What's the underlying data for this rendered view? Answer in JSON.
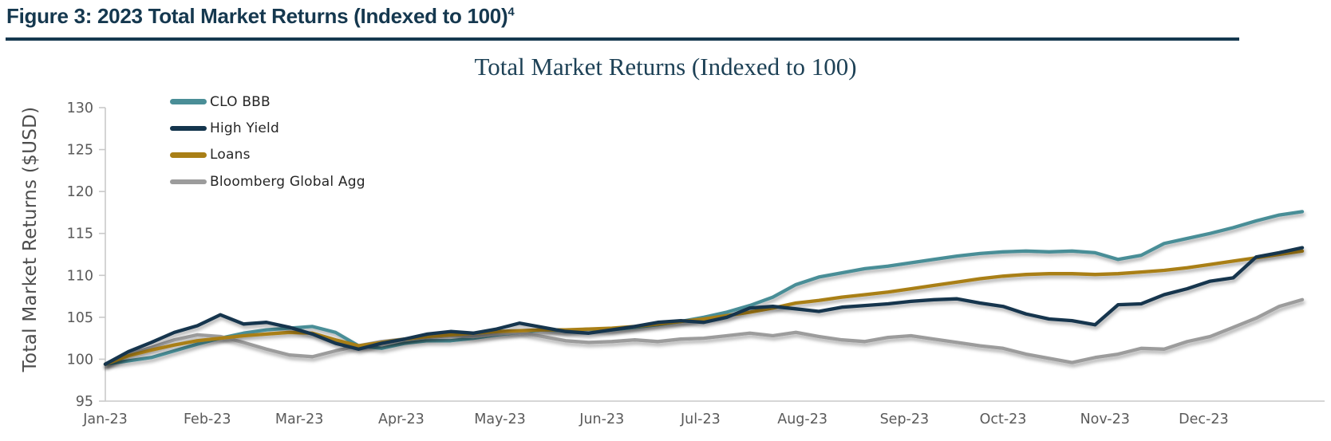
{
  "header": {
    "figure_label": "Figure 3: 2023 Total Market Returns (Indexed to 100)",
    "footnote_marker": "4",
    "heading_color": "#15384F"
  },
  "chart": {
    "title": "Total Market Returns (Indexed to 100)",
    "y_axis_label": "Total Market Returns ($USD)"
  },
  "colors": {
    "heading_navy": "#15384F",
    "title_navy": "#1D4156",
    "axis_line": "#C9C9C9",
    "axis_text": "#5A5A5A",
    "legend_text": "#262626",
    "clo_bbb": "#4A8E97",
    "high_yield": "#14354D",
    "loans": "#A97F16",
    "bloomberg_global_agg": "#9C9C9C"
  },
  "chart_data": {
    "type": "line",
    "title": "Total Market Returns (Indexed to 100)",
    "xlabel": "",
    "ylabel": "Total Market Returns ($USD)",
    "ylim": [
      95,
      130
    ],
    "y_ticks": [
      95,
      100,
      105,
      110,
      115,
      120,
      125,
      130
    ],
    "x_unit": "day of year 2023",
    "x_tick_days": [
      0,
      31,
      59,
      90,
      120,
      151,
      181,
      212,
      243,
      273,
      304,
      334
    ],
    "x_tick_labels": [
      "Jan-23",
      "Feb-23",
      "Mar-23",
      "Apr-23",
      "May-23",
      "Jun-23",
      "Jul-23",
      "Aug-23",
      "Sep-23",
      "Oct-23",
      "Nov-23",
      "Dec-23"
    ],
    "grid": false,
    "legend_position": "inside top-left",
    "series": [
      {
        "name": "CLO BBB",
        "color": "#4A8E97",
        "points": [
          [
            0,
            99.4
          ],
          [
            7,
            99.8
          ],
          [
            14,
            100.2
          ],
          [
            21,
            101.0
          ],
          [
            28,
            101.8
          ],
          [
            35,
            102.5
          ],
          [
            42,
            103.1
          ],
          [
            49,
            103.5
          ],
          [
            56,
            103.7
          ],
          [
            63,
            103.9
          ],
          [
            70,
            103.2
          ],
          [
            77,
            101.6
          ],
          [
            84,
            101.3
          ],
          [
            91,
            101.9
          ],
          [
            98,
            102.2
          ],
          [
            105,
            102.2
          ],
          [
            112,
            102.5
          ],
          [
            119,
            102.9
          ],
          [
            126,
            103.2
          ],
          [
            133,
            103.5
          ],
          [
            140,
            103.4
          ],
          [
            147,
            103.6
          ],
          [
            154,
            103.5
          ],
          [
            161,
            103.8
          ],
          [
            168,
            104.1
          ],
          [
            175,
            104.5
          ],
          [
            182,
            105.0
          ],
          [
            189,
            105.6
          ],
          [
            196,
            106.4
          ],
          [
            203,
            107.4
          ],
          [
            210,
            108.9
          ],
          [
            217,
            109.8
          ],
          [
            224,
            110.3
          ],
          [
            231,
            110.8
          ],
          [
            238,
            111.1
          ],
          [
            245,
            111.5
          ],
          [
            252,
            111.9
          ],
          [
            259,
            112.3
          ],
          [
            266,
            112.6
          ],
          [
            273,
            112.8
          ],
          [
            280,
            112.9
          ],
          [
            287,
            112.8
          ],
          [
            294,
            112.9
          ],
          [
            301,
            112.7
          ],
          [
            308,
            111.9
          ],
          [
            315,
            112.4
          ],
          [
            322,
            113.8
          ],
          [
            329,
            114.4
          ],
          [
            336,
            115.0
          ],
          [
            343,
            115.7
          ],
          [
            350,
            116.5
          ],
          [
            357,
            117.2
          ],
          [
            364,
            117.6
          ]
        ]
      },
      {
        "name": "High Yield",
        "color": "#14354D",
        "points": [
          [
            0,
            99.4
          ],
          [
            7,
            100.9
          ],
          [
            14,
            102.0
          ],
          [
            21,
            103.2
          ],
          [
            28,
            104.0
          ],
          [
            35,
            105.3
          ],
          [
            42,
            104.2
          ],
          [
            49,
            104.4
          ],
          [
            56,
            103.8
          ],
          [
            63,
            103.0
          ],
          [
            70,
            101.9
          ],
          [
            77,
            101.2
          ],
          [
            84,
            101.9
          ],
          [
            91,
            102.4
          ],
          [
            98,
            103.0
          ],
          [
            105,
            103.3
          ],
          [
            112,
            103.1
          ],
          [
            119,
            103.6
          ],
          [
            126,
            104.3
          ],
          [
            133,
            103.8
          ],
          [
            140,
            103.3
          ],
          [
            147,
            103.1
          ],
          [
            154,
            103.5
          ],
          [
            161,
            103.9
          ],
          [
            168,
            104.4
          ],
          [
            175,
            104.6
          ],
          [
            182,
            104.4
          ],
          [
            189,
            105.0
          ],
          [
            196,
            106.1
          ],
          [
            203,
            106.3
          ],
          [
            210,
            106.0
          ],
          [
            217,
            105.7
          ],
          [
            224,
            106.2
          ],
          [
            231,
            106.4
          ],
          [
            238,
            106.6
          ],
          [
            245,
            106.9
          ],
          [
            252,
            107.1
          ],
          [
            259,
            107.2
          ],
          [
            266,
            106.7
          ],
          [
            273,
            106.3
          ],
          [
            280,
            105.4
          ],
          [
            287,
            104.8
          ],
          [
            294,
            104.6
          ],
          [
            301,
            104.1
          ],
          [
            308,
            106.5
          ],
          [
            315,
            106.6
          ],
          [
            322,
            107.7
          ],
          [
            329,
            108.4
          ],
          [
            336,
            109.3
          ],
          [
            343,
            109.7
          ],
          [
            350,
            112.2
          ],
          [
            357,
            112.7
          ],
          [
            364,
            113.3
          ]
        ]
      },
      {
        "name": "Loans",
        "color": "#A97F16",
        "points": [
          [
            0,
            99.4
          ],
          [
            7,
            100.4
          ],
          [
            14,
            101.1
          ],
          [
            21,
            101.7
          ],
          [
            28,
            102.2
          ],
          [
            35,
            102.5
          ],
          [
            42,
            102.8
          ],
          [
            49,
            103.0
          ],
          [
            56,
            103.2
          ],
          [
            63,
            103.1
          ],
          [
            70,
            102.3
          ],
          [
            77,
            101.6
          ],
          [
            84,
            102.0
          ],
          [
            91,
            102.4
          ],
          [
            98,
            102.7
          ],
          [
            105,
            102.9
          ],
          [
            112,
            103.1
          ],
          [
            119,
            103.3
          ],
          [
            126,
            103.4
          ],
          [
            133,
            103.5
          ],
          [
            140,
            103.5
          ],
          [
            147,
            103.6
          ],
          [
            154,
            103.7
          ],
          [
            161,
            103.9
          ],
          [
            168,
            104.2
          ],
          [
            175,
            104.5
          ],
          [
            182,
            104.8
          ],
          [
            189,
            105.2
          ],
          [
            196,
            105.6
          ],
          [
            203,
            106.1
          ],
          [
            210,
            106.7
          ],
          [
            217,
            107.0
          ],
          [
            224,
            107.4
          ],
          [
            231,
            107.7
          ],
          [
            238,
            108.0
          ],
          [
            245,
            108.4
          ],
          [
            252,
            108.8
          ],
          [
            259,
            109.2
          ],
          [
            266,
            109.6
          ],
          [
            273,
            109.9
          ],
          [
            280,
            110.1
          ],
          [
            287,
            110.2
          ],
          [
            294,
            110.2
          ],
          [
            301,
            110.1
          ],
          [
            308,
            110.2
          ],
          [
            315,
            110.4
          ],
          [
            322,
            110.6
          ],
          [
            329,
            110.9
          ],
          [
            336,
            111.3
          ],
          [
            343,
            111.7
          ],
          [
            350,
            112.1
          ],
          [
            357,
            112.5
          ],
          [
            364,
            112.9
          ]
        ]
      },
      {
        "name": "Bloomberg Global Agg",
        "color": "#9C9C9C",
        "points": [
          [
            0,
            99.4
          ],
          [
            7,
            100.6
          ],
          [
            14,
            101.4
          ],
          [
            21,
            102.3
          ],
          [
            28,
            102.9
          ],
          [
            35,
            102.7
          ],
          [
            42,
            102.0
          ],
          [
            49,
            101.2
          ],
          [
            56,
            100.5
          ],
          [
            63,
            100.3
          ],
          [
            70,
            101.0
          ],
          [
            77,
            101.6
          ],
          [
            84,
            102.1
          ],
          [
            91,
            102.4
          ],
          [
            98,
            102.6
          ],
          [
            105,
            102.8
          ],
          [
            112,
            102.7
          ],
          [
            119,
            103.0
          ],
          [
            126,
            103.2
          ],
          [
            133,
            102.7
          ],
          [
            140,
            102.2
          ],
          [
            147,
            102.0
          ],
          [
            154,
            102.1
          ],
          [
            161,
            102.3
          ],
          [
            168,
            102.1
          ],
          [
            175,
            102.4
          ],
          [
            182,
            102.5
          ],
          [
            189,
            102.8
          ],
          [
            196,
            103.1
          ],
          [
            203,
            102.8
          ],
          [
            210,
            103.2
          ],
          [
            217,
            102.7
          ],
          [
            224,
            102.3
          ],
          [
            231,
            102.1
          ],
          [
            238,
            102.6
          ],
          [
            245,
            102.8
          ],
          [
            252,
            102.4
          ],
          [
            259,
            102.0
          ],
          [
            266,
            101.6
          ],
          [
            273,
            101.3
          ],
          [
            280,
            100.6
          ],
          [
            287,
            100.1
          ],
          [
            294,
            99.6
          ],
          [
            301,
            100.2
          ],
          [
            308,
            100.6
          ],
          [
            315,
            101.3
          ],
          [
            322,
            101.2
          ],
          [
            329,
            102.1
          ],
          [
            336,
            102.7
          ],
          [
            343,
            103.8
          ],
          [
            350,
            104.9
          ],
          [
            357,
            106.3
          ],
          [
            364,
            107.1
          ]
        ]
      }
    ]
  }
}
